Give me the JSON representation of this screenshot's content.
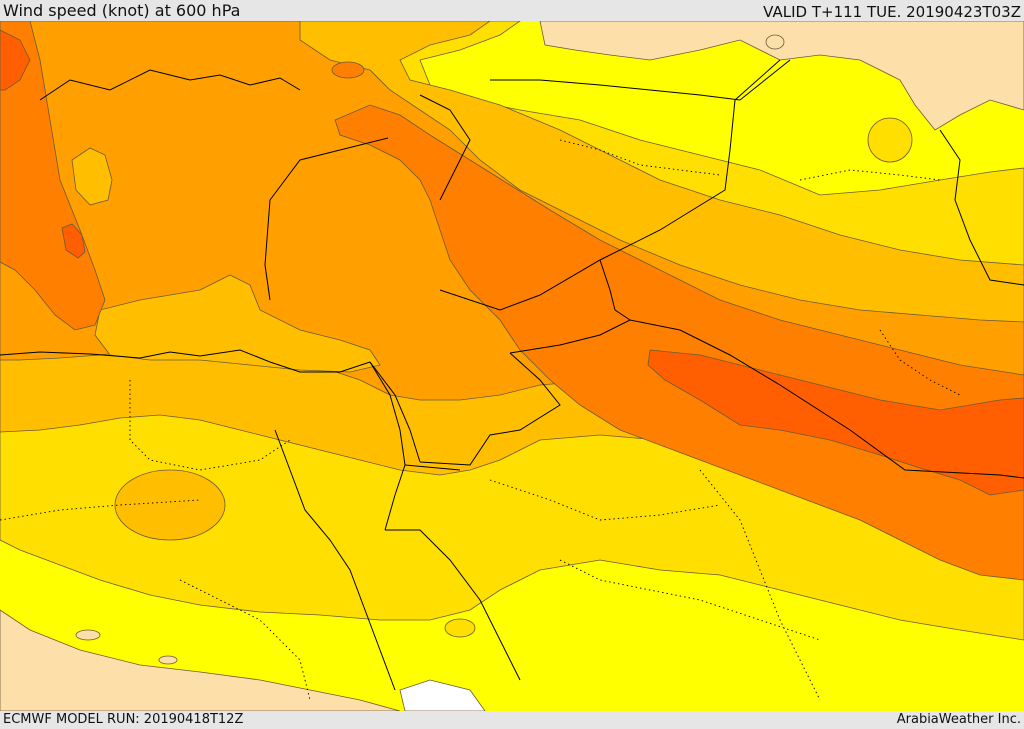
{
  "header": {
    "title": "Wind speed (knot) at 600 hPa",
    "valid": "VALID T+111 TUE. 20190423T03Z"
  },
  "footer": {
    "model_run": "ECMWF MODEL RUN: 20190418T12Z",
    "credit": "ArabiaWeather Inc."
  },
  "map": {
    "colors": {
      "land_tan": "#fddfaa",
      "level_1": "#ffff00",
      "level_2": "#ffdf00",
      "level_3": "#ffbf00",
      "level_4": "#ff9f00",
      "level_5": "#ff7f00",
      "level_6": "#ff5f00",
      "contour": "#6b5a3a",
      "border": "#000000"
    }
  }
}
